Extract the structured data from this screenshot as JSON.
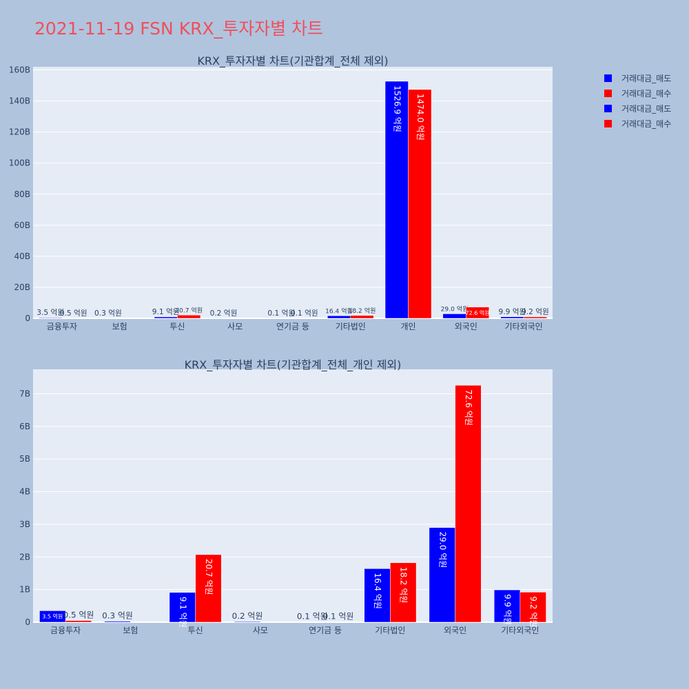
{
  "page_title": "2021-11-19 FSN KRX_투자자별 차트",
  "legend": [
    {
      "label": "거래대금_매도",
      "color": "#0000ff"
    },
    {
      "label": "거래대금_매수",
      "color": "#ff0000"
    },
    {
      "label": "거래대금_매도",
      "color": "#0000ff"
    },
    {
      "label": "거래대금_매수",
      "color": "#ff0000"
    }
  ],
  "chart_data": [
    {
      "type": "bar",
      "title": "KRX_투자자별 차트(기관합계_전체 제외)",
      "categories": [
        "금융투자",
        "보험",
        "투신",
        "사모",
        "연기금 등",
        "기타법인",
        "개인",
        "외국인",
        "기타외국인"
      ],
      "series": [
        {
          "name": "거래대금_매도",
          "color": "#0000ff",
          "values": [
            0.35,
            0.03,
            0.91,
            0.02,
            0.01,
            1.64,
            152.69,
            2.9,
            0.99
          ],
          "labels": [
            "3.5 억원",
            "0.3 억원",
            "9.1 억원",
            "0.2 억원",
            "0.1 억원",
            "16.4 억원",
            "1526.9 억원",
            "29.0 억원",
            "9.9 억원"
          ]
        },
        {
          "name": "거래대금_매수",
          "color": "#ff0000",
          "values": [
            0.05,
            0.0,
            2.07,
            0.0,
            0.01,
            1.82,
            147.4,
            7.26,
            0.92
          ],
          "labels": [
            "0.5 억원",
            "",
            "20.7 억원",
            "",
            "0.1 억원",
            "18.2 억원",
            "1474.0 억원",
            "72.6 억원",
            "9.2 억원"
          ]
        }
      ],
      "yticks": [
        "0",
        "20B",
        "40B",
        "60B",
        "80B",
        "100B",
        "120B",
        "140B",
        "160B"
      ],
      "ytick_values": [
        0,
        20,
        40,
        60,
        80,
        100,
        120,
        140,
        160
      ],
      "ylim": [
        0,
        162
      ]
    },
    {
      "type": "bar",
      "title": "KRX_투자자별 차트(기관합계_전체_개인 제외)",
      "categories": [
        "금융투자",
        "보험",
        "투신",
        "사모",
        "연기금 등",
        "기타법인",
        "외국인",
        "기타외국인"
      ],
      "series": [
        {
          "name": "거래대금_매도",
          "color": "#0000ff",
          "values": [
            0.35,
            0.03,
            0.91,
            0.02,
            0.01,
            1.64,
            2.9,
            0.99
          ],
          "labels": [
            "3.5 억원",
            "0.3 억원",
            "9.1 억원",
            "0.2 억원",
            "0.1 억원",
            "16.4 억원",
            "29.0 억원",
            "9.9 억원"
          ]
        },
        {
          "name": "거래대금_매수",
          "color": "#ff0000",
          "values": [
            0.05,
            0.0,
            2.07,
            0.0,
            0.01,
            1.82,
            7.26,
            0.92
          ],
          "labels": [
            "0.5 억원",
            "",
            "20.7 억원",
            "",
            "0.1 억원",
            "18.2 억원",
            "72.6 억원",
            "9.2 억원"
          ]
        }
      ],
      "yticks": [
        "0",
        "1B",
        "2B",
        "3B",
        "4B",
        "5B",
        "6B",
        "7B"
      ],
      "ytick_values": [
        0,
        1,
        2,
        3,
        4,
        5,
        6,
        7
      ],
      "ylim": [
        0,
        7.75
      ]
    }
  ]
}
